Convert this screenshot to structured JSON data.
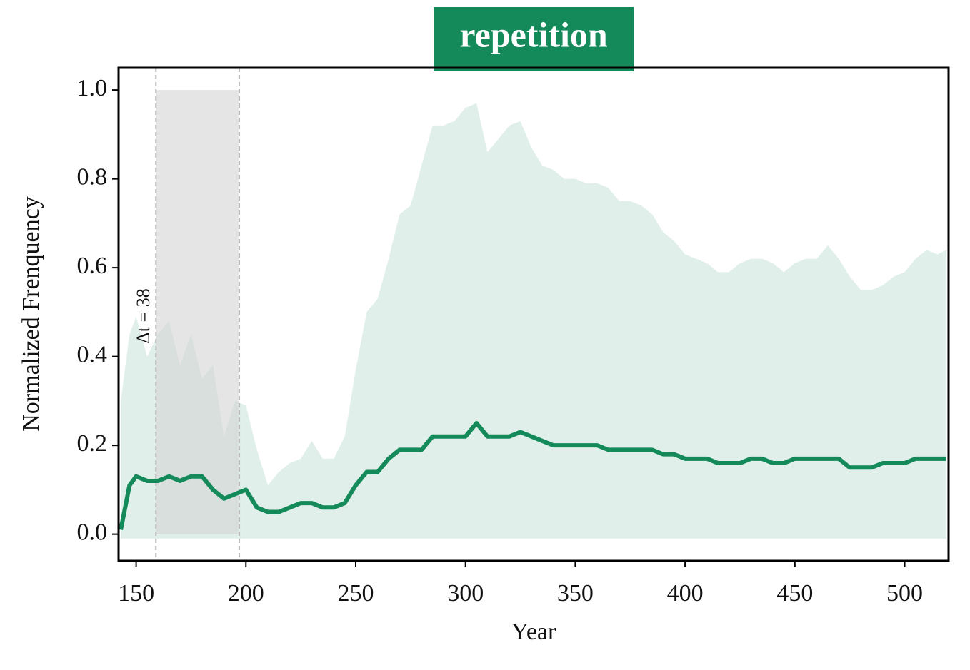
{
  "chart_data": {
    "type": "line",
    "title": "repetition",
    "xlabel": "Year",
    "ylabel": "Normalized Frenquency",
    "annotation": "Δt = 38",
    "title_color": "#148a5a",
    "span": [
      159,
      197
    ],
    "span_y": [
      0,
      1
    ],
    "span_color": "#d3d3d3",
    "xlim": [
      142,
      520
    ],
    "ylim": [
      -0.06,
      1.05
    ],
    "xticks": [
      150,
      200,
      250,
      300,
      350,
      400,
      450,
      500
    ],
    "yticks": [
      {
        "value": 0,
        "label": "0.0"
      },
      {
        "value": 0.2,
        "label": "0.2"
      },
      {
        "value": 0.4,
        "label": "0.4"
      },
      {
        "value": 0.6,
        "label": "0.6"
      },
      {
        "value": 0.8,
        "label": "0.8"
      },
      {
        "value": 1,
        "label": "1.0"
      }
    ],
    "x": [
      143,
      147,
      150,
      155,
      160,
      165,
      170,
      175,
      180,
      185,
      190,
      195,
      200,
      205,
      210,
      215,
      220,
      225,
      230,
      235,
      240,
      245,
      250,
      255,
      260,
      265,
      270,
      275,
      280,
      285,
      290,
      295,
      300,
      305,
      310,
      315,
      320,
      325,
      330,
      335,
      340,
      345,
      350,
      355,
      360,
      365,
      370,
      375,
      380,
      385,
      390,
      395,
      400,
      405,
      410,
      415,
      420,
      425,
      430,
      435,
      440,
      445,
      450,
      455,
      460,
      465,
      470,
      475,
      480,
      485,
      490,
      495,
      500,
      505,
      510,
      515,
      519
    ],
    "band": {
      "color": "#e0efe9",
      "upper": [
        0.3,
        0.45,
        0.49,
        0.4,
        0.45,
        0.48,
        0.38,
        0.45,
        0.35,
        0.38,
        0.22,
        0.3,
        0.29,
        0.19,
        0.11,
        0.14,
        0.16,
        0.17,
        0.21,
        0.17,
        0.17,
        0.22,
        0.37,
        0.5,
        0.53,
        0.62,
        0.72,
        0.74,
        0.83,
        0.92,
        0.92,
        0.93,
        0.96,
        0.97,
        0.86,
        0.89,
        0.92,
        0.93,
        0.87,
        0.83,
        0.82,
        0.8,
        0.8,
        0.79,
        0.79,
        0.78,
        0.75,
        0.75,
        0.74,
        0.72,
        0.68,
        0.66,
        0.63,
        0.62,
        0.61,
        0.59,
        0.59,
        0.61,
        0.62,
        0.62,
        0.61,
        0.59,
        0.61,
        0.62,
        0.62,
        0.65,
        0.62,
        0.58,
        0.55,
        0.55,
        0.56,
        0.58,
        0.59,
        0.62,
        0.64,
        0.63,
        0.64
      ],
      "lower": [
        -0.01,
        -0.01,
        -0.01,
        -0.01,
        -0.01,
        -0.01,
        -0.01,
        -0.01,
        -0.01,
        -0.01,
        -0.01,
        -0.01,
        -0.01,
        -0.01,
        -0.01,
        -0.01,
        -0.01,
        -0.01,
        -0.01,
        -0.01,
        -0.01,
        -0.01,
        -0.01,
        -0.01,
        -0.01,
        -0.01,
        -0.01,
        -0.01,
        -0.01,
        -0.01,
        -0.01,
        -0.01,
        -0.01,
        -0.01,
        -0.01,
        -0.01,
        -0.01,
        -0.01,
        -0.01,
        -0.01,
        -0.01,
        -0.01,
        -0.01,
        -0.01,
        -0.01,
        -0.01,
        -0.01,
        -0.01,
        -0.01,
        -0.01,
        -0.01,
        -0.01,
        -0.01,
        -0.01,
        -0.01,
        -0.01,
        -0.01,
        -0.01,
        -0.01,
        -0.01,
        -0.01,
        -0.01,
        -0.01,
        -0.01,
        -0.01,
        -0.01,
        -0.01,
        -0.01,
        -0.01,
        -0.01,
        -0.01,
        -0.01,
        -0.01,
        -0.01,
        -0.01,
        -0.01,
        -0.01
      ]
    },
    "line": {
      "color": "#148a5a",
      "values": [
        0.01,
        0.11,
        0.13,
        0.12,
        0.12,
        0.13,
        0.12,
        0.13,
        0.13,
        0.1,
        0.08,
        0.09,
        0.1,
        0.06,
        0.05,
        0.05,
        0.06,
        0.07,
        0.07,
        0.06,
        0.06,
        0.07,
        0.11,
        0.14,
        0.14,
        0.17,
        0.19,
        0.19,
        0.19,
        0.22,
        0.22,
        0.22,
        0.22,
        0.25,
        0.22,
        0.22,
        0.22,
        0.23,
        0.22,
        0.21,
        0.2,
        0.2,
        0.2,
        0.2,
        0.2,
        0.19,
        0.19,
        0.19,
        0.19,
        0.19,
        0.18,
        0.18,
        0.17,
        0.17,
        0.17,
        0.16,
        0.16,
        0.16,
        0.17,
        0.17,
        0.16,
        0.16,
        0.17,
        0.17,
        0.17,
        0.17,
        0.17,
        0.15,
        0.15,
        0.15,
        0.16,
        0.16,
        0.16,
        0.17,
        0.17,
        0.17,
        0.17
      ]
    }
  }
}
